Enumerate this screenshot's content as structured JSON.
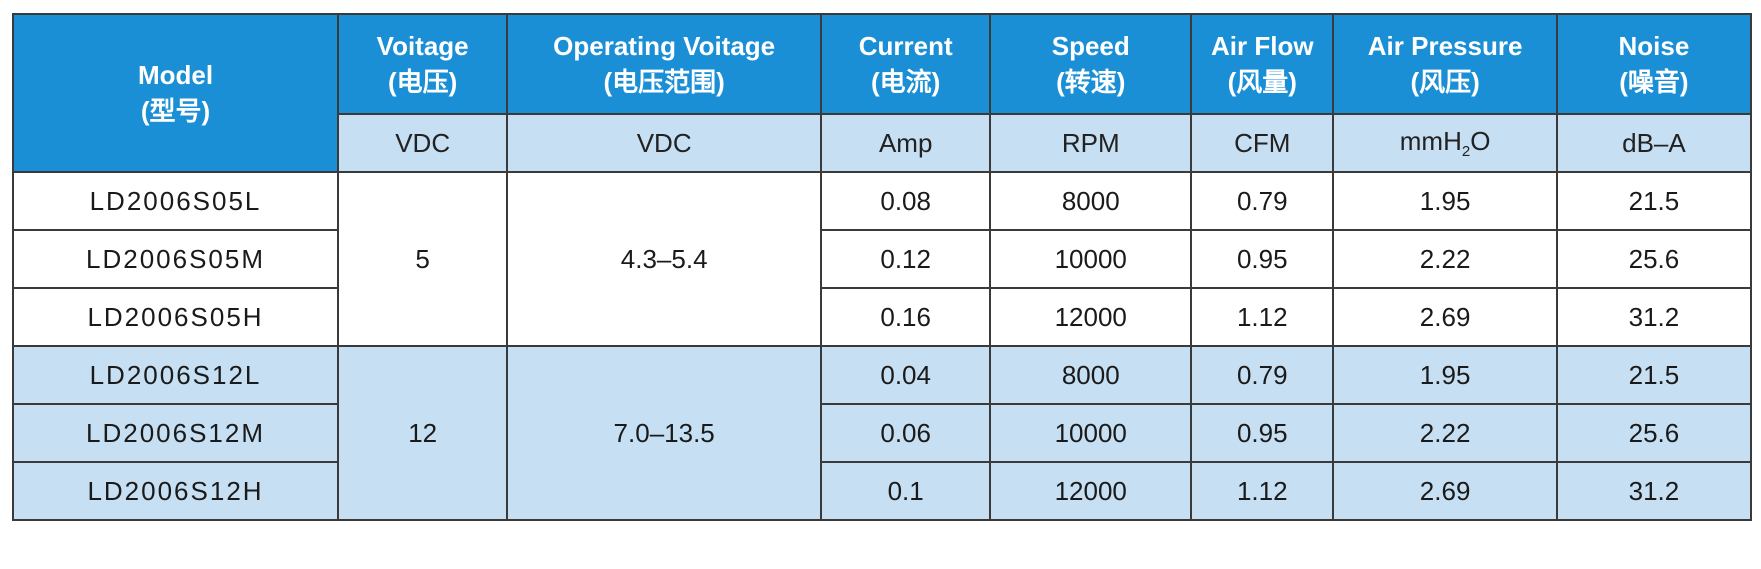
{
  "headers": {
    "model": {
      "en": "Model",
      "cn": "(型号)"
    },
    "voltage": {
      "en": "Voitage",
      "cn": "(电压)",
      "unit": "VDC"
    },
    "operating": {
      "en": "Operating Voitage",
      "cn": "(电压范围)",
      "unit": "VDC"
    },
    "current": {
      "en": "Current",
      "cn": "(电流)",
      "unit": "Amp"
    },
    "speed": {
      "en": "Speed",
      "cn": "(转速)",
      "unit": "RPM"
    },
    "airflow": {
      "en": "Air Flow",
      "cn": "(风量)",
      "unit": "CFM"
    },
    "pressure": {
      "en": "Air Pressure",
      "cn": "(风压)",
      "unit_pre": "mmH",
      "unit_sub": "2",
      "unit_post": "O"
    },
    "noise": {
      "en": "Noise",
      "cn": "(噪音)",
      "unit": "dB–A"
    }
  },
  "groups": [
    {
      "voltage": "5",
      "operating": "4.3–5.4",
      "rows": [
        {
          "model": "LD2006S05L",
          "current": "0.08",
          "speed": "8000",
          "airflow": "0.79",
          "pressure": "1.95",
          "noise": "21.5"
        },
        {
          "model": "LD2006S05M",
          "current": "0.12",
          "speed": "10000",
          "airflow": "0.95",
          "pressure": "2.22",
          "noise": "25.6"
        },
        {
          "model": "LD2006S05H",
          "current": "0.16",
          "speed": "12000",
          "airflow": "1.12",
          "pressure": "2.69",
          "noise": "31.2"
        }
      ]
    },
    {
      "voltage": "12",
      "operating": "7.0–13.5",
      "rows": [
        {
          "model": "LD2006S12L",
          "current": "0.04",
          "speed": "8000",
          "airflow": "0.79",
          "pressure": "1.95",
          "noise": "21.5"
        },
        {
          "model": "LD2006S12M",
          "current": "0.06",
          "speed": "10000",
          "airflow": "0.95",
          "pressure": "2.22",
          "noise": "25.6"
        },
        {
          "model": "LD2006S12H",
          "current": "0.1",
          "speed": "12000",
          "airflow": "1.12",
          "pressure": "2.69",
          "noise": "31.2"
        }
      ]
    }
  ],
  "colors": {
    "header_bg": "#1a8fd6",
    "light_blue": "#c6dff2",
    "white": "#ffffff"
  }
}
